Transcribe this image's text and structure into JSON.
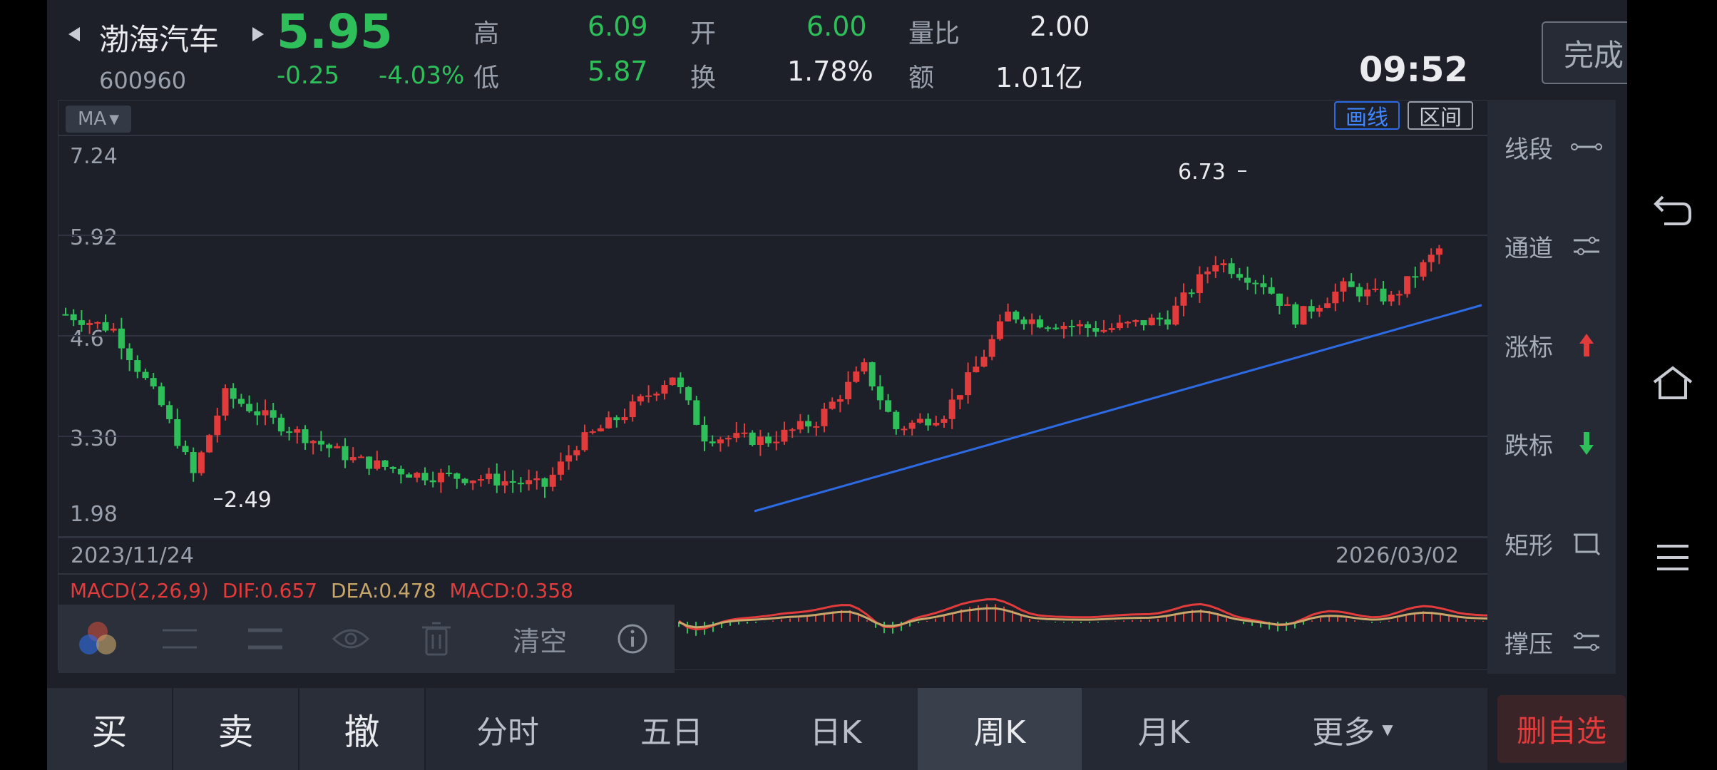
{
  "stock": {
    "name": "渤海汽车",
    "code": "600960",
    "price": "5.95",
    "change": "-0.25",
    "change_pct": "-4.03%",
    "time": "09:52"
  },
  "quote": {
    "high_label": "高",
    "high": "6.09",
    "low_label": "低",
    "low": "5.87",
    "open_label": "开",
    "open": "6.00",
    "turnover_label": "换",
    "turnover": "1.78%",
    "vol_ratio_label": "量比",
    "vol_ratio": "2.00",
    "amount_label": "额",
    "amount": "1.01亿"
  },
  "done_label": "完成",
  "chart": {
    "ma_label": "MA",
    "draw_label": "画线",
    "range_label": "区间",
    "y_ticks": [
      "7.24",
      "5.92",
      "4.6",
      "3.30",
      "1.98"
    ],
    "max_marker": "6.73",
    "min_marker": "2.49",
    "start_date": "2023/11/24",
    "end_date": "2026/03/02"
  },
  "macd": {
    "label": "MACD(2,26,9)",
    "dif": "DIF:0.657",
    "dea": "DEA:0.478",
    "macd": "MACD:0.358"
  },
  "draw_toolbar": {
    "clear_label": "清空"
  },
  "tools": [
    {
      "label": "线段",
      "icon": "segment-icon"
    },
    {
      "label": "通道",
      "icon": "channel-icon"
    },
    {
      "label": "涨标",
      "icon": "up-arrow-icon"
    },
    {
      "label": "跌标",
      "icon": "down-arrow-icon"
    },
    {
      "label": "矩形",
      "icon": "rectangle-icon"
    },
    {
      "label": "撑压",
      "icon": "support-icon"
    }
  ],
  "trade": {
    "buy": "买",
    "sell": "卖",
    "cancel": "撤"
  },
  "periods": [
    {
      "label": "分时",
      "active": false
    },
    {
      "label": "五日",
      "active": false
    },
    {
      "label": "日K",
      "active": false
    },
    {
      "label": "周K",
      "active": true
    },
    {
      "label": "月K",
      "active": false
    },
    {
      "label": "更多",
      "active": false
    }
  ],
  "delete_watch": "删自选",
  "colors": {
    "up": "#e23b3b",
    "down": "#2fbf5a",
    "trendline": "#2d6be4",
    "background": "#1d2029"
  }
}
